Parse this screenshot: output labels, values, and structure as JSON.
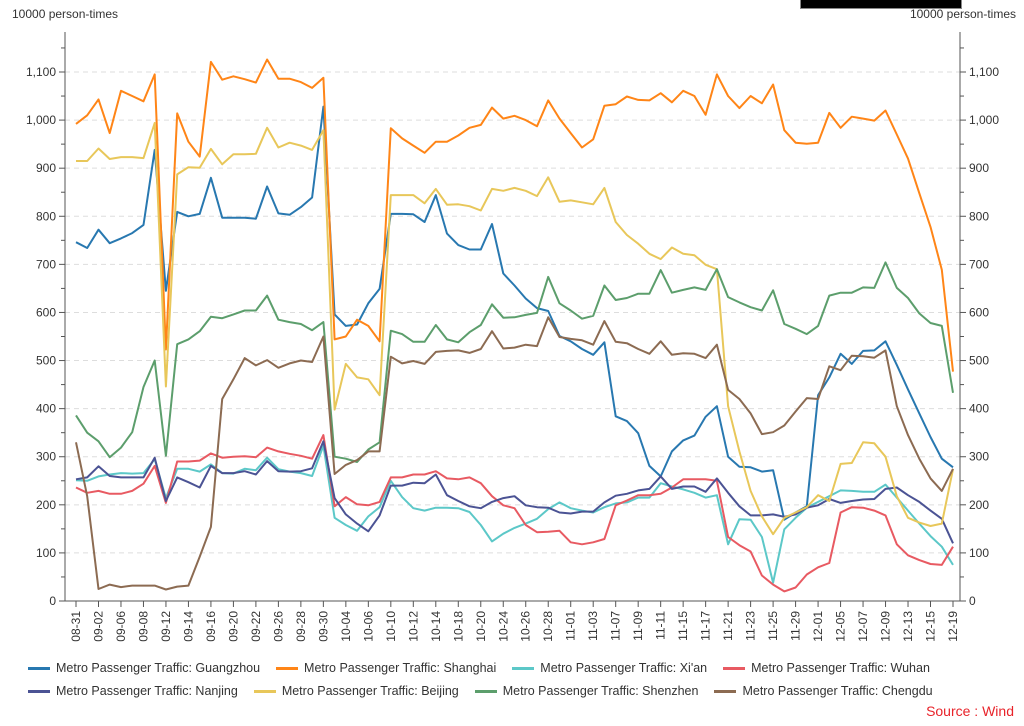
{
  "chart_data": {
    "type": "line",
    "y_unit_left": "10000 person-times",
    "y_unit_right": "10000 person-times",
    "ylim": [
      0,
      1150
    ],
    "y_ticks": [
      0,
      100,
      200,
      300,
      400,
      500,
      600,
      700,
      800,
      900,
      1000,
      1100
    ],
    "y_tick_labels": [
      "0",
      "100",
      "200",
      "300",
      "400",
      "500",
      "600",
      "700",
      "800",
      "900",
      "1,000",
      "1,100"
    ],
    "grid": "horizontal dashed",
    "legend_position": "bottom",
    "x_tick_labels": [
      "08-31",
      "09-02",
      "09-06",
      "09-08",
      "09-12",
      "09-14",
      "09-16",
      "09-20",
      "09-22",
      "09-26",
      "09-28",
      "09-30",
      "10-04",
      "10-06",
      "10-10",
      "10-12",
      "10-14",
      "10-18",
      "10-20",
      "10-24",
      "10-26",
      "10-28",
      "11-01",
      "11-03",
      "11-07",
      "11-09",
      "11-11",
      "11-15",
      "11-17",
      "11-21",
      "11-23",
      "11-25",
      "11-29",
      "12-01",
      "12-05",
      "12-07",
      "12-09",
      "12-13",
      "12-15",
      "12-19"
    ],
    "x_label_every": 2,
    "series": [
      {
        "name": "Metro Passenger Traffic: Guangzhou",
        "color": "#2878b0",
        "values": [
          746,
          734,
          772,
          744,
          754,
          765,
          782,
          938,
          645,
          809,
          800,
          805,
          880,
          797,
          797,
          797,
          795,
          862,
          806,
          803,
          819,
          839,
          1028,
          596,
          572,
          575,
          619,
          649,
          805,
          805,
          804,
          788,
          844,
          764,
          740,
          731,
          731,
          784,
          681,
          656,
          629,
          609,
          603,
          551,
          540,
          524,
          512,
          538,
          384,
          374,
          349,
          281,
          259,
          311,
          334,
          344,
          383,
          405,
          300,
          279,
          278,
          269,
          272,
          169,
          184,
          197,
          428,
          465,
          514,
          493,
          520,
          521,
          540,
          491,
          440,
          390,
          341,
          296,
          278
        ]
      },
      {
        "name": "Metro Passenger Traffic: Shanghai",
        "color": "#ff8517",
        "values": [
          992,
          1010,
          1043,
          973,
          1061,
          1050,
          1039,
          1095,
          523,
          1014,
          955,
          924,
          1121,
          1084,
          1091,
          1085,
          1078,
          1126,
          1086,
          1086,
          1079,
          1067,
          1088,
          544,
          550,
          585,
          572,
          540,
          983,
          962,
          947,
          932,
          955,
          955,
          968,
          984,
          990,
          1026,
          1003,
          1009,
          1000,
          987,
          1041,
          1003,
          973,
          943,
          960,
          1030,
          1033,
          1049,
          1042,
          1041,
          1056,
          1037,
          1061,
          1050,
          1011,
          1095,
          1050,
          1025,
          1050,
          1035,
          1074,
          979,
          953,
          951,
          953,
          1015,
          984,
          1007,
          1003,
          999,
          1020,
          970,
          920,
          848,
          778,
          689,
          477
        ]
      },
      {
        "name": "Metro Passenger Traffic: Xi'an",
        "color": "#5cc8c8",
        "values": [
          251,
          250,
          259,
          263,
          266,
          265,
          266,
          295,
          214,
          275,
          275,
          269,
          284,
          266,
          265,
          275,
          272,
          298,
          274,
          269,
          266,
          260,
          323,
          173,
          158,
          146,
          176,
          195,
          250,
          216,
          193,
          188,
          194,
          194,
          193,
          185,
          158,
          124,
          140,
          152,
          161,
          171,
          191,
          205,
          193,
          188,
          184,
          195,
          203,
          205,
          215,
          215,
          245,
          238,
          232,
          225,
          215,
          220,
          118,
          170,
          169,
          133,
          38,
          149,
          173,
          194,
          206,
          218,
          230,
          229,
          227,
          227,
          242,
          215,
          188,
          161,
          135,
          113,
          75
        ]
      },
      {
        "name": "Metro Passenger Traffic: Wuhan",
        "color": "#e85a62",
        "values": [
          236,
          225,
          229,
          223,
          223,
          229,
          244,
          281,
          204,
          290,
          290,
          292,
          307,
          298,
          300,
          301,
          299,
          319,
          311,
          306,
          302,
          296,
          345,
          197,
          216,
          201,
          199,
          206,
          257,
          257,
          263,
          263,
          270,
          255,
          253,
          257,
          245,
          218,
          199,
          193,
          158,
          143,
          144,
          146,
          122,
          118,
          122,
          129,
          199,
          209,
          220,
          220,
          223,
          236,
          253,
          253,
          253,
          250,
          133,
          116,
          103,
          53,
          34,
          20,
          28,
          55,
          70,
          79,
          184,
          195,
          194,
          188,
          178,
          118,
          95,
          85,
          77,
          75,
          113
        ]
      },
      {
        "name": "Metro Passenger Traffic: Nanjing",
        "color": "#4b5394",
        "values": [
          253,
          257,
          280,
          260,
          257,
          257,
          257,
          298,
          208,
          257,
          247,
          236,
          281,
          266,
          266,
          270,
          263,
          291,
          270,
          269,
          270,
          276,
          332,
          214,
          180,
          161,
          145,
          178,
          240,
          240,
          246,
          245,
          263,
          220,
          208,
          197,
          193,
          206,
          214,
          218,
          199,
          195,
          194,
          184,
          182,
          186,
          186,
          205,
          219,
          223,
          230,
          233,
          259,
          233,
          238,
          238,
          227,
          255,
          225,
          197,
          178,
          178,
          180,
          175,
          180,
          194,
          199,
          212,
          204,
          208,
          211,
          212,
          233,
          236,
          220,
          206,
          188,
          171,
          120
        ]
      },
      {
        "name": "Metro Passenger Traffic: Beijing",
        "color": "#e8c75a",
        "values": [
          915,
          915,
          941,
          919,
          923,
          923,
          921,
          994,
          446,
          887,
          902,
          901,
          940,
          908,
          929,
          929,
          930,
          984,
          943,
          953,
          947,
          938,
          979,
          398,
          493,
          465,
          461,
          428,
          844,
          844,
          844,
          827,
          857,
          824,
          825,
          821,
          812,
          857,
          853,
          859,
          853,
          842,
          881,
          830,
          833,
          829,
          825,
          859,
          788,
          761,
          743,
          722,
          711,
          735,
          722,
          719,
          699,
          690,
          405,
          311,
          229,
          176,
          139,
          173,
          184,
          195,
          220,
          208,
          285,
          287,
          330,
          328,
          300,
          218,
          173,
          163,
          156,
          161,
          274
        ]
      },
      {
        "name": "Metro Passenger Traffic: Shenzhen",
        "color": "#5c9e6c",
        "values": [
          386,
          350,
          332,
          299,
          319,
          351,
          445,
          500,
          302,
          534,
          544,
          561,
          591,
          588,
          596,
          604,
          604,
          635,
          585,
          580,
          576,
          563,
          580,
          300,
          296,
          289,
          315,
          330,
          562,
          555,
          539,
          539,
          574,
          544,
          538,
          559,
          574,
          617,
          589,
          590,
          595,
          599,
          674,
          619,
          604,
          587,
          593,
          656,
          626,
          630,
          639,
          639,
          688,
          641,
          647,
          652,
          647,
          690,
          632,
          621,
          611,
          604,
          646,
          576,
          566,
          555,
          572,
          635,
          641,
          641,
          652,
          651,
          704,
          651,
          630,
          598,
          578,
          572,
          433
        ]
      },
      {
        "name": "Metro Passenger Traffic: Chengdu",
        "color": "#8c6b52",
        "values": [
          330,
          218,
          25,
          34,
          29,
          32,
          32,
          32,
          24,
          30,
          32,
          92,
          154,
          420,
          461,
          505,
          490,
          501,
          485,
          494,
          500,
          497,
          550,
          264,
          283,
          293,
          311,
          311,
          508,
          494,
          499,
          493,
          518,
          520,
          521,
          516,
          524,
          561,
          525,
          527,
          533,
          530,
          590,
          549,
          545,
          542,
          533,
          582,
          539,
          536,
          524,
          514,
          540,
          512,
          515,
          514,
          505,
          533,
          439,
          420,
          390,
          347,
          351,
          365,
          394,
          422,
          420,
          488,
          480,
          510,
          509,
          506,
          521,
          405,
          345,
          296,
          255,
          229,
          275
        ]
      }
    ],
    "source": "Source : Wind"
  }
}
